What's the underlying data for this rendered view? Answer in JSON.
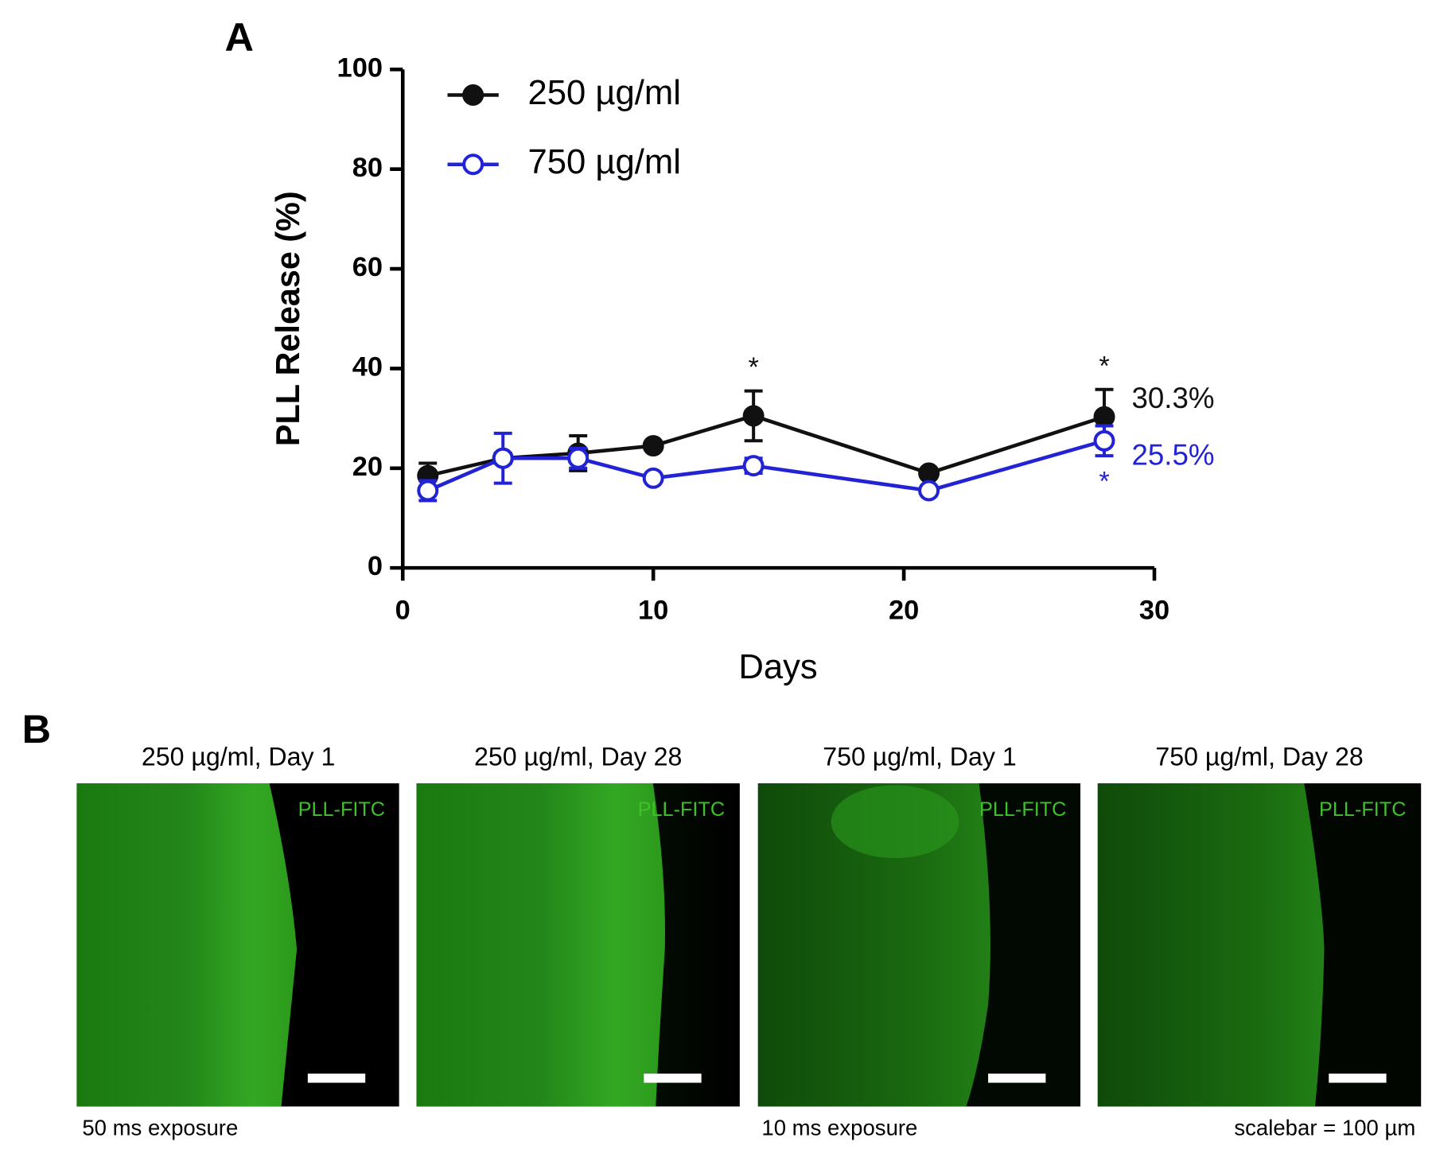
{
  "chart_data": {
    "type": "line",
    "panel_label": "A",
    "x_label": "Days",
    "y_label": "PLL Release (%)",
    "xlim": [
      0,
      30
    ],
    "xticks": [
      0,
      10,
      20,
      30
    ],
    "ylim": [
      0,
      100
    ],
    "yticks": [
      0,
      20,
      40,
      60,
      80,
      100
    ],
    "x": [
      1,
      4,
      7,
      10,
      14,
      21,
      28
    ],
    "legend": "upper left",
    "series": [
      {
        "name": "250 µg/ml",
        "color": "#111111",
        "marker": "filled",
        "values": [
          18.5,
          22,
          23,
          24.5,
          30.5,
          19,
          30.3
        ],
        "errors": [
          2.5,
          1,
          3.5,
          0.5,
          5,
          0.5,
          5.5
        ],
        "value_labels": [
          null,
          null,
          null,
          null,
          null,
          null,
          "30.3%"
        ],
        "significance": [
          null,
          null,
          null,
          null,
          "*",
          null,
          "*"
        ]
      },
      {
        "name": "750 µg/ml",
        "color": "#2323d6",
        "marker": "open",
        "values": [
          15.5,
          22,
          22,
          18,
          20.5,
          15.5,
          25.5
        ],
        "errors": [
          2,
          5,
          2,
          0.5,
          1.5,
          0.5,
          3
        ],
        "value_labels": [
          null,
          null,
          null,
          null,
          null,
          null,
          "25.5%"
        ],
        "significance": [
          null,
          null,
          null,
          null,
          null,
          null,
          "*"
        ]
      }
    ]
  },
  "panel_b": {
    "panel_label": "B",
    "images": [
      {
        "title": "250 µg/ml, Day 1",
        "stain": "PLL-FITC"
      },
      {
        "title": "250 µg/ml, Day 28",
        "stain": "PLL-FITC"
      },
      {
        "title": "750 µg/ml, Day 1",
        "stain": "PLL-FITC"
      },
      {
        "title": "750 µg/ml, Day 28",
        "stain": "PLL-FITC"
      }
    ],
    "captions": [
      "50 ms exposure",
      "10 ms exposure",
      "scalebar = 100 µm"
    ]
  }
}
